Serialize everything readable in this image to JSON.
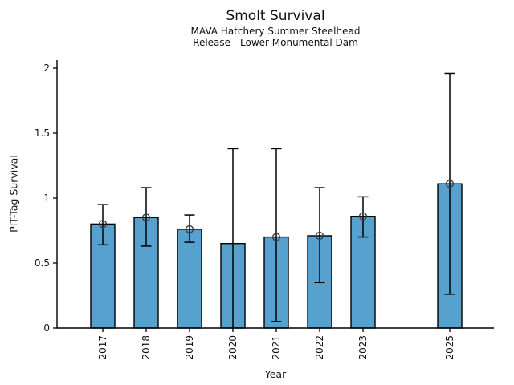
{
  "chart_data": {
    "type": "bar",
    "title": "Smolt Survival",
    "subtitle_line1": "MAVA Hatchery Summer Steelhead",
    "subtitle_line2": "Release - Lower Monumental Dam",
    "xlabel": "Year",
    "ylabel": "PIT-Tag Survival",
    "ylim": [
      0,
      2.06
    ],
    "yticks": [
      0,
      0.5,
      1,
      1.5,
      2
    ],
    "ytick_labels": [
      "0",
      "0.5",
      "1",
      "1.5",
      "2"
    ],
    "categories": [
      "2017",
      "2018",
      "2019",
      "2020",
      "2021",
      "2022",
      "2023",
      "2025"
    ],
    "years": [
      2017,
      2018,
      2019,
      2020,
      2021,
      2022,
      2023,
      2025
    ],
    "missing_years": [
      2024
    ],
    "values": [
      0.8,
      0.85,
      0.76,
      0.65,
      0.7,
      0.71,
      0.86,
      1.11
    ],
    "error_low": [
      0.64,
      0.63,
      0.66,
      0.0,
      0.05,
      0.35,
      0.7,
      0.26
    ],
    "error_high": [
      0.95,
      1.08,
      0.87,
      1.38,
      1.38,
      1.08,
      1.01,
      1.96
    ],
    "point_marker_shown": [
      true,
      true,
      true,
      false,
      true,
      true,
      true,
      true
    ],
    "grid": false,
    "legend": null,
    "colors": {
      "bar_fill": "#57a1ce",
      "bar_edge": "#000000",
      "error_bar": "#000000",
      "marker_edge": "#3c3c3c",
      "axis": "#000000",
      "text": "#111111"
    }
  }
}
